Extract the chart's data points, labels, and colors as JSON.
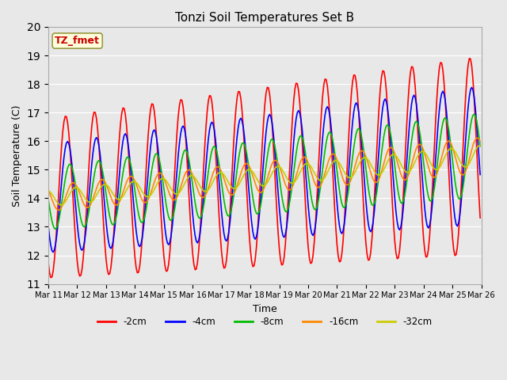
{
  "title": "Tonzi Soil Temperatures Set B",
  "xlabel": "Time",
  "ylabel": "Soil Temperature (C)",
  "ylim": [
    11.0,
    20.0
  ],
  "yticks": [
    11.0,
    12.0,
    13.0,
    14.0,
    15.0,
    16.0,
    17.0,
    18.0,
    19.0,
    20.0
  ],
  "annotation_text": "TZ_fmet",
  "annotation_color": "#cc0000",
  "annotation_bg": "#ffffdd",
  "annotation_border": "#999944",
  "colors": {
    "-2cm": "#ff0000",
    "-4cm": "#0000ff",
    "-8cm": "#00bb00",
    "-16cm": "#ff8800",
    "-32cm": "#cccc00"
  },
  "line_width": 1.2,
  "background_color": "#e8e8e8",
  "plot_bg": "#e8e8e8",
  "grid_color": "#ffffff",
  "xtick_labels": [
    "Mar 11",
    "Mar 12",
    "Mar 13",
    "Mar 14",
    "Mar 15",
    "Mar 16",
    "Mar 17",
    "Mar 18",
    "Mar 19",
    "Mar 20",
    "Mar 21",
    "Mar 22",
    "Mar 23",
    "Mar 24",
    "Mar 25",
    "Mar 26"
  ],
  "n_days": 15,
  "figsize": [
    6.4,
    4.8
  ],
  "dpi": 100
}
